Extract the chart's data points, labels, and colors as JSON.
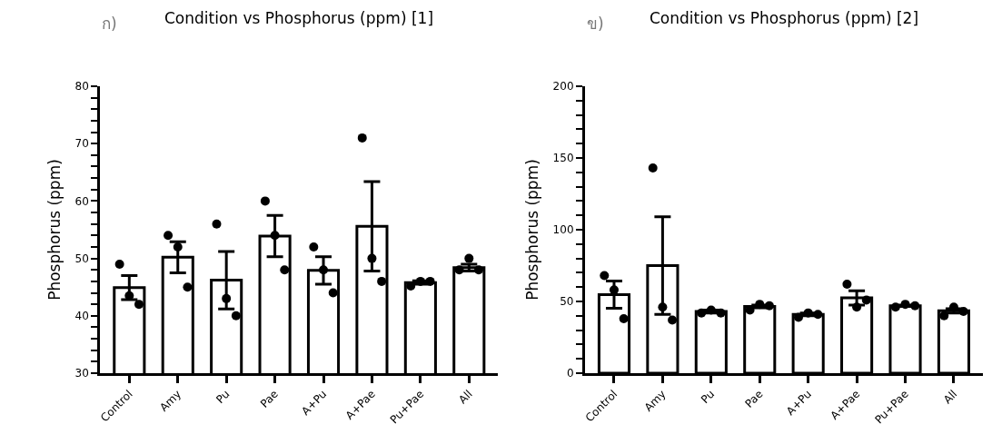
{
  "chart_data": [
    {
      "type": "bar",
      "title": "Condition vs Phosphorus (ppm) [1]",
      "annotations": [
        "ก)"
      ],
      "ylabel": "Phosphorus (ppm)",
      "categories": [
        "Control",
        "Amy",
        "Pu",
        "Pae",
        "A+Pu",
        "A+Pae",
        "Pu+Pae",
        "All"
      ],
      "series": [
        {
          "color": "#ffffff",
          "values": [
            44.9,
            50.2,
            46.2,
            53.9,
            47.9,
            55.6,
            45.8,
            48.4
          ],
          "errors": [
            2.1,
            2.7,
            5.0,
            3.6,
            2.4,
            7.8,
            0.3,
            0.6
          ]
        },
        {
          "type": "scatter",
          "color": "#000000",
          "x": [
            "Control",
            "Control",
            "Control",
            "Amy",
            "Amy",
            "Amy",
            "Pu",
            "Pu",
            "Pu",
            "Pae",
            "Pae",
            "Pae",
            "A+Pu",
            "A+Pu",
            "A+Pu",
            "A+Pae",
            "A+Pae",
            "A+Pae",
            "Pu+Pae",
            "Pu+Pae",
            "Pu+Pae",
            "All",
            "All",
            "All"
          ],
          "values": [
            49,
            43.5,
            42,
            54,
            52,
            45,
            56,
            43,
            40,
            60,
            54,
            48,
            52,
            48,
            44,
            71,
            50,
            46,
            45.2,
            46,
            46,
            48,
            50,
            48
          ]
        }
      ],
      "ylim": [
        30,
        80
      ],
      "yticks": [
        30,
        {
          "value": 32,
          "label": null
        },
        {
          "value": 34,
          "label": null
        },
        {
          "value": 36,
          "label": null
        },
        {
          "value": 38,
          "label": null
        },
        40,
        {
          "value": 42,
          "label": null
        },
        {
          "value": 44,
          "label": null
        },
        {
          "value": 46,
          "label": null
        },
        {
          "value": 48,
          "label": null
        },
        50,
        {
          "value": 52,
          "label": null
        },
        {
          "value": 54,
          "label": null
        },
        {
          "value": 56,
          "label": null
        },
        {
          "value": 58,
          "label": null
        },
        60,
        {
          "value": 62,
          "label": null
        },
        {
          "value": 64,
          "label": null
        },
        {
          "value": 66,
          "label": null
        },
        {
          "value": 68,
          "label": null
        },
        70,
        {
          "value": 72,
          "label": null
        },
        {
          "value": 74,
          "label": null
        },
        {
          "value": 76,
          "label": null
        },
        {
          "value": 78,
          "label": null
        },
        80
      ],
      "marker": "circle"
    },
    {
      "type": "bar",
      "title": "Condition vs Phosphorus (ppm) [2]",
      "annotations": [
        "ข)"
      ],
      "ylabel": "Phosphorus (ppm)",
      "categories": [
        "Control",
        "Amy",
        "Pu",
        "Pae",
        "A+Pu",
        "A+Pae",
        "Pu+Pae",
        "All"
      ],
      "series": [
        {
          "color": "#ffffff",
          "values": [
            54.7,
            75,
            43,
            46.5,
            41,
            52.5,
            47,
            43.5
          ],
          "errors": [
            9.5,
            34,
            1,
            1,
            1,
            5,
            0.5,
            1.5
          ]
        },
        {
          "type": "scatter",
          "color": "#000000",
          "x": [
            "Control",
            "Control",
            "Control",
            "Amy",
            "Amy",
            "Amy",
            "Pu",
            "Pu",
            "Pu",
            "Pae",
            "Pae",
            "Pae",
            "A+Pu",
            "A+Pu",
            "A+Pu",
            "A+Pae",
            "A+Pae",
            "A+Pae",
            "Pu+Pae",
            "Pu+Pae",
            "Pu+Pae",
            "All",
            "All",
            "All"
          ],
          "values": [
            68,
            58,
            38,
            143,
            46,
            37,
            42,
            44,
            42,
            44,
            48,
            47,
            39,
            42,
            41,
            62,
            46,
            51,
            46,
            48,
            47,
            40,
            46,
            43
          ]
        }
      ],
      "ylim": [
        0,
        200
      ],
      "yticks": [
        0,
        {
          "value": 10,
          "label": null
        },
        {
          "value": 20,
          "label": null
        },
        {
          "value": 30,
          "label": null
        },
        {
          "value": 40,
          "label": null
        },
        50,
        {
          "value": 60,
          "label": null
        },
        {
          "value": 70,
          "label": null
        },
        {
          "value": 80,
          "label": null
        },
        {
          "value": 90,
          "label": null
        },
        100,
        {
          "value": 110,
          "label": null
        },
        {
          "value": 120,
          "label": null
        },
        {
          "value": 130,
          "label": null
        },
        {
          "value": 140,
          "label": null
        },
        150,
        {
          "value": 160,
          "label": null
        },
        {
          "value": 170,
          "label": null
        },
        {
          "value": 180,
          "label": null
        },
        {
          "value": 190,
          "label": null
        },
        200
      ],
      "marker": "circle"
    }
  ]
}
